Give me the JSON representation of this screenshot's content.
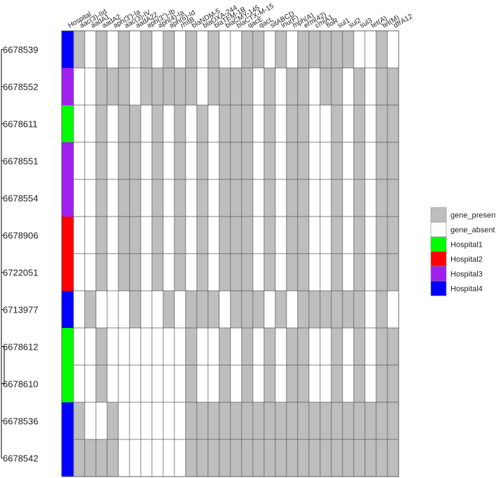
{
  "chart_data": {
    "type": "heatmap",
    "columns": [
      "Hospital",
      "aac(3)-IId",
      "aadA1",
      "aadA2",
      "aph(3')-Ia",
      "aac(3)-IV",
      "aadA22",
      "aph(3'')-Ib",
      "aph(4)-Ia",
      "aph(6)-Id",
      "rmtB",
      "blaNDM-5",
      "blaOXA-244",
      "blaTEM-1B",
      "blaCMY-145",
      "blaCTX-M-15",
      "qacE",
      "qacL",
      "sitABCD",
      "lnu(F)",
      "mph(A)",
      "erm(42)",
      "cmlA1",
      "floR",
      "sul1",
      "sul2",
      "sul3",
      "tet(A)",
      "tet(M)",
      "dfrA12"
    ],
    "rows": [
      {
        "id": "6678539",
        "hospital": "Hospital4",
        "genes": [
          1,
          0,
          1,
          0,
          1,
          0,
          1,
          0,
          1,
          0,
          1,
          0,
          1,
          0,
          0,
          1,
          1,
          0,
          1,
          0,
          1,
          1,
          1,
          1,
          1,
          0,
          0,
          1,
          0
        ]
      },
      {
        "id": "6678552",
        "hospital": "Hospital3",
        "genes": [
          0,
          0,
          1,
          1,
          1,
          0,
          1,
          1,
          1,
          1,
          1,
          0,
          1,
          1,
          1,
          1,
          0,
          1,
          0,
          1,
          1,
          0,
          1,
          1,
          0,
          1,
          0,
          1,
          1
        ]
      },
      {
        "id": "6678611",
        "hospital": "Hospital1",
        "genes": [
          0,
          0,
          1,
          0,
          1,
          1,
          0,
          1,
          0,
          1,
          0,
          1,
          0,
          1,
          1,
          1,
          0,
          1,
          0,
          1,
          1,
          0,
          0,
          1,
          0,
          1,
          0,
          1,
          1
        ]
      },
      {
        "id": "6678551",
        "hospital": "Hospital3",
        "genes": [
          0,
          0,
          1,
          0,
          1,
          1,
          0,
          1,
          0,
          1,
          0,
          1,
          0,
          1,
          1,
          1,
          0,
          1,
          0,
          1,
          1,
          0,
          0,
          1,
          0,
          1,
          0,
          1,
          1
        ]
      },
      {
        "id": "6678554",
        "hospital": "Hospital3",
        "genes": [
          0,
          0,
          1,
          0,
          1,
          1,
          0,
          1,
          0,
          1,
          0,
          1,
          0,
          1,
          1,
          1,
          0,
          1,
          0,
          1,
          1,
          0,
          0,
          1,
          0,
          1,
          0,
          1,
          1
        ]
      },
      {
        "id": "6678906",
        "hospital": "Hospital2",
        "genes": [
          0,
          0,
          1,
          0,
          1,
          1,
          0,
          1,
          0,
          1,
          0,
          1,
          0,
          1,
          1,
          1,
          0,
          1,
          0,
          1,
          1,
          0,
          0,
          1,
          0,
          1,
          0,
          1,
          1
        ]
      },
      {
        "id": "6722051",
        "hospital": "Hospital2",
        "genes": [
          0,
          0,
          1,
          0,
          1,
          1,
          0,
          1,
          0,
          1,
          0,
          1,
          0,
          1,
          1,
          1,
          0,
          1,
          0,
          1,
          1,
          0,
          0,
          1,
          0,
          1,
          0,
          1,
          1
        ]
      },
      {
        "id": "6713977",
        "hospital": "Hospital4",
        "genes": [
          0,
          1,
          0,
          0,
          0,
          1,
          0,
          0,
          1,
          0,
          1,
          1,
          1,
          0,
          1,
          1,
          1,
          0,
          1,
          0,
          1,
          1,
          1,
          1,
          1,
          1,
          0,
          1,
          0
        ]
      },
      {
        "id": "6678612",
        "hospital": "Hospital1",
        "genes": [
          0,
          0,
          1,
          0,
          0,
          0,
          0,
          0,
          0,
          0,
          1,
          0,
          0,
          1,
          0,
          1,
          0,
          1,
          0,
          1,
          1,
          0,
          0,
          1,
          0,
          1,
          0,
          1,
          1
        ]
      },
      {
        "id": "6678610",
        "hospital": "Hospital1",
        "genes": [
          0,
          0,
          1,
          0,
          0,
          0,
          0,
          0,
          0,
          0,
          1,
          0,
          0,
          1,
          0,
          1,
          0,
          1,
          0,
          1,
          1,
          0,
          0,
          1,
          0,
          1,
          0,
          1,
          1
        ]
      },
      {
        "id": "6678536",
        "hospital": "Hospital4",
        "genes": [
          1,
          0,
          0,
          1,
          0,
          0,
          0,
          0,
          0,
          0,
          1,
          1,
          1,
          1,
          1,
          1,
          1,
          1,
          1,
          1,
          1,
          1,
          1,
          1,
          1,
          1,
          1,
          1,
          1
        ]
      },
      {
        "id": "6678542",
        "hospital": "Hospital4",
        "genes": [
          1,
          1,
          1,
          1,
          0,
          0,
          0,
          0,
          0,
          0,
          1,
          1,
          1,
          1,
          1,
          1,
          1,
          1,
          1,
          1,
          1,
          1,
          1,
          1,
          1,
          1,
          1,
          1,
          1
        ]
      }
    ],
    "legend": [
      {
        "key": "present",
        "label": "gene_present",
        "color": "#bebebe"
      },
      {
        "key": "absent",
        "label": "gene_absent",
        "color": "#ffffff"
      },
      {
        "key": "Hospital1",
        "label": "Hospital1",
        "color": "#00ff00"
      },
      {
        "key": "Hospital2",
        "label": "Hospital2",
        "color": "#ff0000"
      },
      {
        "key": "Hospital3",
        "label": "Hospital3",
        "color": "#a020f0"
      },
      {
        "key": "Hospital4",
        "label": "Hospital4",
        "color": "#0000ff"
      }
    ],
    "legend_position": "right",
    "grid": true,
    "dendrogram": "left"
  }
}
